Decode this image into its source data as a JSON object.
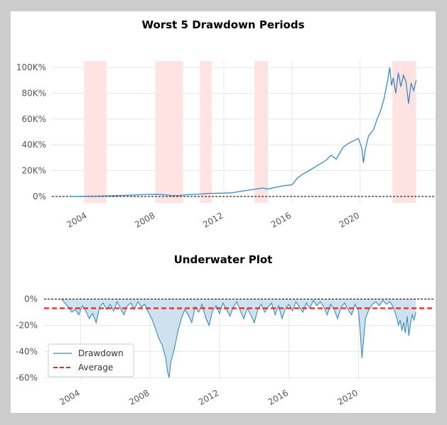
{
  "chart_data": [
    {
      "type": "line",
      "title": "Worst 5 Drawdown Periods",
      "xlabel": "",
      "ylabel": "",
      "xlim": [
        2001.9,
        2024.4
      ],
      "ylim": [
        -5000,
        105000
      ],
      "x_ticks": [
        {
          "value": 2004,
          "label": "2004"
        },
        {
          "value": 2008,
          "label": "2008"
        },
        {
          "value": 2012,
          "label": "2012"
        },
        {
          "value": 2016,
          "label": "2016"
        },
        {
          "value": 2020,
          "label": "2020"
        }
      ],
      "y_ticks": [
        {
          "value": 0,
          "label": "0%"
        },
        {
          "value": 20000,
          "label": "20K%"
        },
        {
          "value": 40000,
          "label": "40K%"
        },
        {
          "value": 60000,
          "label": "60K%"
        },
        {
          "value": 80000,
          "label": "80K%"
        },
        {
          "value": 100000,
          "label": "100K%"
        }
      ],
      "grid": true,
      "baseline": 0,
      "shaded_periods": [
        {
          "start": 2003.8,
          "end": 2005.1
        },
        {
          "start": 2008.0,
          "end": 2009.6
        },
        {
          "start": 2010.6,
          "end": 2011.3
        },
        {
          "start": 2013.8,
          "end": 2014.6
        },
        {
          "start": 2021.9,
          "end": 2023.3
        }
      ],
      "series": [
        {
          "color": "#3a8bbb",
          "x": [
            2003.0,
            2003.5,
            2004.0,
            2004.5,
            2005.0,
            2005.5,
            2006.0,
            2006.5,
            2007.0,
            2007.5,
            2008.0,
            2008.5,
            2009.0,
            2009.4,
            2009.8,
            2010.2,
            2010.6,
            2011.0,
            2011.5,
            2012.0,
            2012.5,
            2013.0,
            2013.5,
            2014.0,
            2014.3,
            2014.6,
            2015.0,
            2015.5,
            2016.0,
            2016.3,
            2016.6,
            2017.0,
            2017.5,
            2018.0,
            2018.3,
            2018.6,
            2019.0,
            2019.3,
            2019.6,
            2019.9,
            2020.1,
            2020.2,
            2020.3,
            2020.5,
            2020.8,
            2021.0,
            2021.2,
            2021.4,
            2021.6,
            2021.75,
            2021.85,
            2021.95,
            2022.1,
            2022.25,
            2022.4,
            2022.55,
            2022.7,
            2022.85,
            2023.0,
            2023.15,
            2023.3
          ],
          "values": [
            0,
            100,
            200,
            300,
            400,
            600,
            800,
            1000,
            1300,
            1600,
            1700,
            1400,
            600,
            800,
            1300,
            1600,
            1900,
            2300,
            2500,
            2600,
            2900,
            4000,
            5000,
            6000,
            6500,
            5800,
            7000,
            8300,
            9000,
            14000,
            17000,
            20000,
            24000,
            28000,
            32000,
            29000,
            38000,
            41000,
            43000,
            45000,
            38000,
            26000,
            36000,
            47000,
            52000,
            60000,
            66000,
            75000,
            88000,
            100000,
            86000,
            92000,
            80000,
            96000,
            85000,
            94000,
            89000,
            72000,
            88000,
            82000,
            90000
          ]
        }
      ]
    },
    {
      "type": "area",
      "title": "Underwater Plot",
      "xlabel": "",
      "ylabel": "",
      "xlim": [
        2001.9,
        2024.4
      ],
      "ylim": [
        -62,
        3
      ],
      "x_ticks": [
        {
          "value": 2004,
          "label": "2004"
        },
        {
          "value": 2008,
          "label": "2008"
        },
        {
          "value": 2012,
          "label": "2012"
        },
        {
          "value": 2016,
          "label": "2016"
        },
        {
          "value": 2020,
          "label": "2020"
        }
      ],
      "y_ticks": [
        {
          "value": 0,
          "label": "0%"
        },
        {
          "value": -20,
          "label": "-20%"
        },
        {
          "value": -40,
          "label": "-40%"
        },
        {
          "value": -60,
          "label": "-60%"
        }
      ],
      "grid": true,
      "baseline": 0,
      "average": -7,
      "legend_position": "lower-left",
      "series": [
        {
          "name": "Drawdown",
          "color": "#3a8bbb",
          "x": [
            2002.9,
            2003.1,
            2003.3,
            2003.5,
            2003.7,
            2003.9,
            2004.1,
            2004.3,
            2004.5,
            2004.7,
            2004.9,
            2005.1,
            2005.3,
            2005.5,
            2005.7,
            2005.9,
            2006.1,
            2006.3,
            2006.5,
            2006.7,
            2006.9,
            2007.1,
            2007.3,
            2007.5,
            2007.7,
            2007.9,
            2008.1,
            2008.3,
            2008.5,
            2008.7,
            2008.9,
            2009.0,
            2009.1,
            2009.2,
            2009.4,
            2009.6,
            2009.8,
            2010.0,
            2010.2,
            2010.4,
            2010.6,
            2010.8,
            2011.0,
            2011.2,
            2011.4,
            2011.6,
            2011.8,
            2012.0,
            2012.2,
            2012.4,
            2012.6,
            2012.8,
            2013.0,
            2013.2,
            2013.4,
            2013.6,
            2013.8,
            2014.0,
            2014.2,
            2014.4,
            2014.6,
            2014.8,
            2015.0,
            2015.2,
            2015.4,
            2015.6,
            2015.8,
            2016.0,
            2016.2,
            2016.4,
            2016.6,
            2016.8,
            2017.0,
            2017.2,
            2017.4,
            2017.6,
            2017.8,
            2018.0,
            2018.2,
            2018.4,
            2018.6,
            2018.8,
            2019.0,
            2019.2,
            2019.4,
            2019.6,
            2019.8,
            2020.0,
            2020.1,
            2020.2,
            2020.3,
            2020.4,
            2020.6,
            2020.8,
            2021.0,
            2021.2,
            2021.4,
            2021.6,
            2021.8,
            2022.0,
            2022.1,
            2022.2,
            2022.3,
            2022.4,
            2022.5,
            2022.6,
            2022.7,
            2022.8,
            2022.9,
            2023.0,
            2023.1,
            2023.2,
            2023.3
          ],
          "values": [
            0,
            -3,
            -6,
            -10,
            -8,
            -12,
            -5,
            -9,
            -15,
            -11,
            -18,
            -6,
            -3,
            -8,
            -4,
            -9,
            -2,
            -7,
            -12,
            -5,
            -3,
            -8,
            -2,
            -6,
            -4,
            -10,
            -15,
            -22,
            -30,
            -35,
            -45,
            -55,
            -60,
            -48,
            -38,
            -25,
            -15,
            -8,
            -12,
            -18,
            -6,
            -10,
            -4,
            -14,
            -20,
            -9,
            -5,
            -11,
            -3,
            -8,
            -13,
            -6,
            -2,
            -9,
            -15,
            -7,
            -12,
            -18,
            -8,
            -4,
            -10,
            -6,
            -3,
            -12,
            -5,
            -15,
            -7,
            -4,
            -9,
            -2,
            -6,
            -10,
            -3,
            -7,
            -1,
            -5,
            -2,
            -6,
            -12,
            -4,
            -8,
            -15,
            -6,
            -3,
            -8,
            -12,
            -4,
            -9,
            -25,
            -45,
            -30,
            -15,
            -8,
            -4,
            -2,
            -5,
            -1,
            -4,
            -2,
            -6,
            -10,
            -14,
            -20,
            -16,
            -24,
            -18,
            -26,
            -13,
            -28,
            -18,
            -12,
            -16,
            -10
          ]
        },
        {
          "name": "Average",
          "color": "#ee1c1c",
          "style": "dashed"
        }
      ]
    }
  ]
}
